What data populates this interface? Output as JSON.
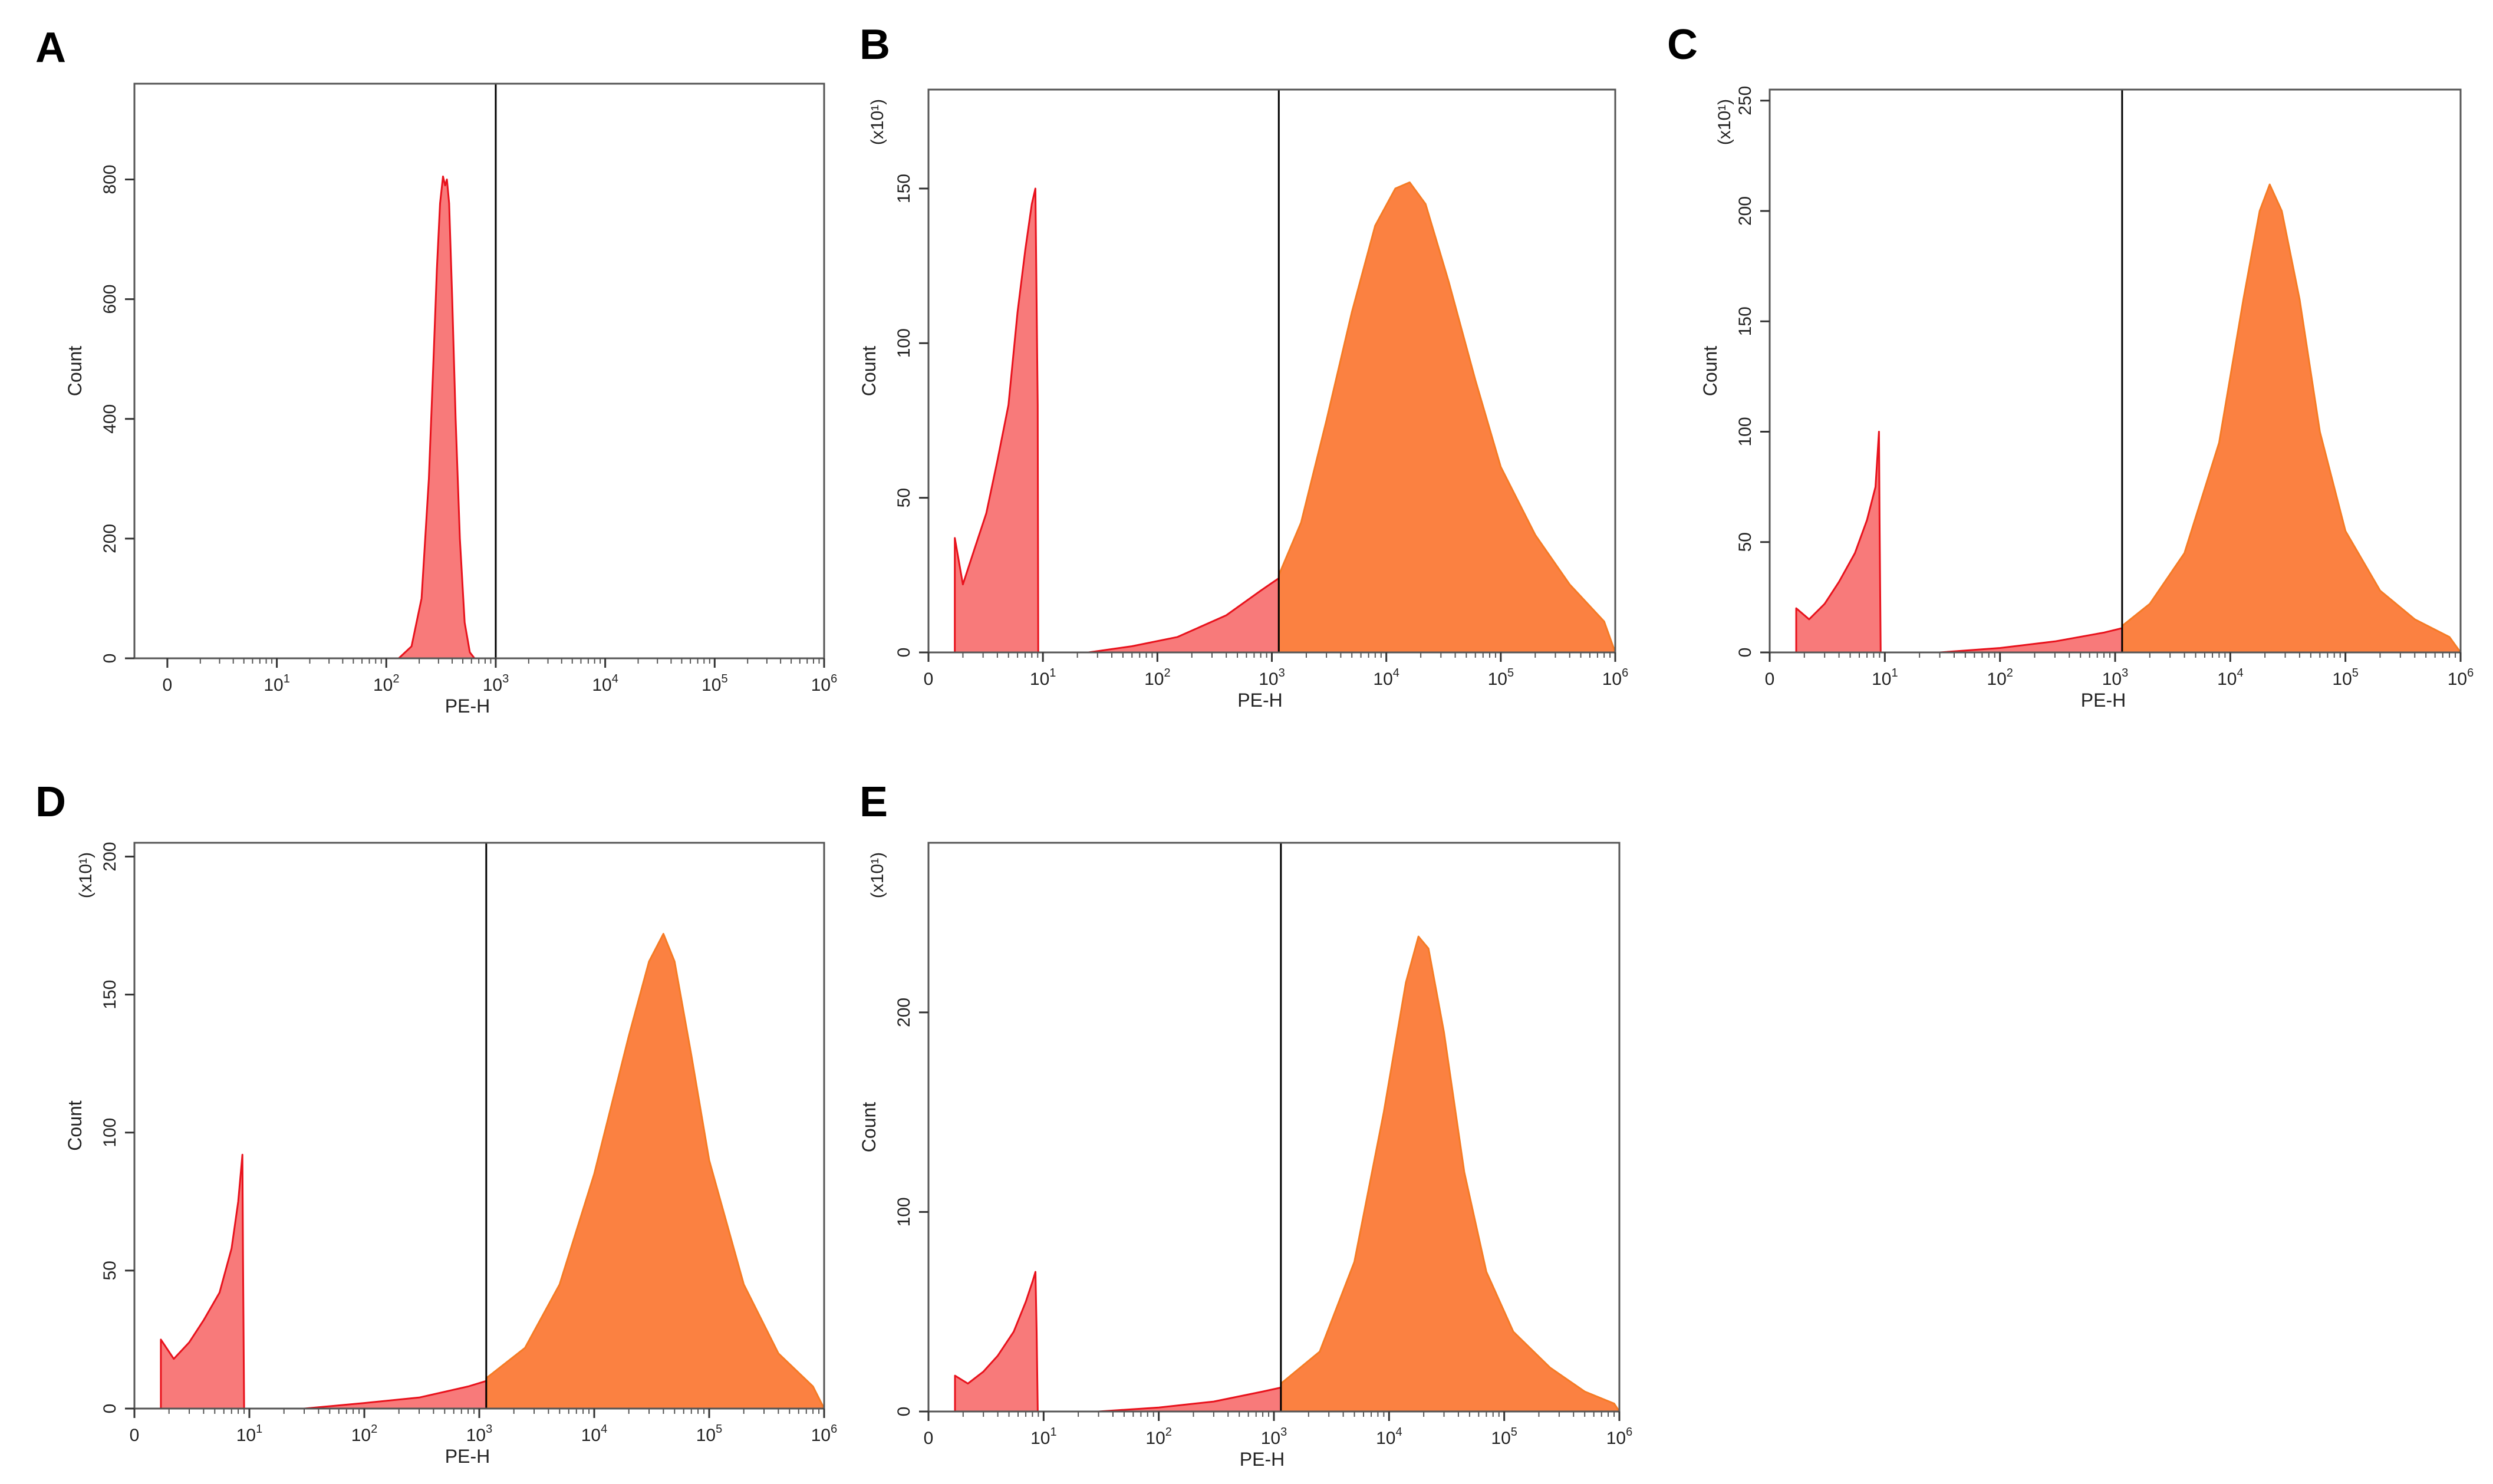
{
  "colors": {
    "negative_fill": "#f87a7a",
    "negative_stroke": "#e8121c",
    "positive_fill": "#fb8141",
    "positive_stroke": "#f57b25",
    "frame": "#000000"
  },
  "chart_data": [
    {
      "panel": "A",
      "type": "area",
      "xlabel": "PE-H",
      "ylabel": "Count",
      "multiplier": "",
      "xscale": "log",
      "xlim": [
        0.5,
        1000000
      ],
      "ylim": [
        0,
        960
      ],
      "xticks": [
        {
          "label": "0",
          "value": 1
        },
        {
          "label": "10",
          "exp": "1",
          "value": 10
        },
        {
          "label": "10",
          "exp": "2",
          "value": 100
        },
        {
          "label": "10",
          "exp": "3",
          "value": 1000
        },
        {
          "label": "10",
          "exp": "4",
          "value": 10000
        },
        {
          "label": "10",
          "exp": "5",
          "value": 100000
        },
        {
          "label": "10",
          "exp": "6",
          "value": 1000000
        }
      ],
      "yticks": [
        0,
        200,
        400,
        600,
        800
      ],
      "gate": 1000,
      "series": [
        {
          "name": "negative",
          "points": [
            [
              130,
              0
            ],
            [
              170,
              20
            ],
            [
              210,
              100
            ],
            [
              245,
              300
            ],
            [
              270,
              500
            ],
            [
              290,
              650
            ],
            [
              310,
              760
            ],
            [
              330,
              805
            ],
            [
              345,
              790
            ],
            [
              358,
              800
            ],
            [
              375,
              760
            ],
            [
              400,
              600
            ],
            [
              430,
              400
            ],
            [
              470,
              200
            ],
            [
              520,
              60
            ],
            [
              580,
              10
            ],
            [
              640,
              0
            ]
          ]
        }
      ]
    },
    {
      "panel": "B",
      "type": "area",
      "xlabel": "PE-H",
      "ylabel": "Count",
      "multiplier": "(x10¹)",
      "xscale": "log",
      "xlim": [
        1,
        1000000
      ],
      "ylim": [
        0,
        182
      ],
      "xticks": [
        {
          "label": "0",
          "value": 1
        },
        {
          "label": "10",
          "exp": "1",
          "value": 10
        },
        {
          "label": "10",
          "exp": "2",
          "value": 100
        },
        {
          "label": "10",
          "exp": "3",
          "value": 1000
        },
        {
          "label": "10",
          "exp": "4",
          "value": 10000
        },
        {
          "label": "10",
          "exp": "5",
          "value": 100000
        },
        {
          "label": "10",
          "exp": "6",
          "value": 1000000
        }
      ],
      "yticks": [
        0,
        50,
        100,
        150
      ],
      "gate": 1150,
      "series": [
        {
          "name": "negative",
          "points": [
            [
              1.7,
              0
            ],
            [
              1.7,
              37
            ],
            [
              2.0,
              22
            ],
            [
              2.5,
              33
            ],
            [
              3.2,
              45
            ],
            [
              4.0,
              62
            ],
            [
              5.0,
              80
            ],
            [
              6.0,
              110
            ],
            [
              7.0,
              130
            ],
            [
              8.0,
              145
            ],
            [
              8.6,
              150
            ],
            [
              9.0,
              80
            ],
            [
              9.1,
              0
            ],
            [
              25,
              0
            ],
            [
              60,
              2
            ],
            [
              150,
              5
            ],
            [
              400,
              12
            ],
            [
              800,
              20
            ],
            [
              1150,
              24
            ]
          ]
        },
        {
          "name": "positive",
          "points": [
            [
              1150,
              0
            ],
            [
              1150,
              25
            ],
            [
              1800,
              42
            ],
            [
              3000,
              75
            ],
            [
              5000,
              110
            ],
            [
              8000,
              138
            ],
            [
              12000,
              150
            ],
            [
              16000,
              152
            ],
            [
              22000,
              145
            ],
            [
              35000,
              120
            ],
            [
              60000,
              88
            ],
            [
              100000,
              60
            ],
            [
              200000,
              38
            ],
            [
              400000,
              22
            ],
            [
              800000,
              10
            ],
            [
              1000000,
              0
            ]
          ]
        }
      ]
    },
    {
      "panel": "C",
      "type": "area",
      "xlabel": "PE-H",
      "ylabel": "Count",
      "multiplier": "(x10¹)",
      "xscale": "log",
      "xlim": [
        1,
        1000000
      ],
      "ylim": [
        0,
        255
      ],
      "xticks": [
        {
          "label": "0",
          "value": 1
        },
        {
          "label": "10",
          "exp": "1",
          "value": 10
        },
        {
          "label": "10",
          "exp": "2",
          "value": 100
        },
        {
          "label": "10",
          "exp": "3",
          "value": 1000
        },
        {
          "label": "10",
          "exp": "4",
          "value": 10000
        },
        {
          "label": "10",
          "exp": "5",
          "value": 100000
        },
        {
          "label": "10",
          "exp": "6",
          "value": 1000000
        }
      ],
      "yticks": [
        0,
        50,
        100,
        150,
        200,
        250
      ],
      "gate": 1150,
      "series": [
        {
          "name": "negative",
          "points": [
            [
              1.7,
              0
            ],
            [
              1.7,
              20
            ],
            [
              2.2,
              15
            ],
            [
              3.0,
              22
            ],
            [
              4.0,
              32
            ],
            [
              5.5,
              45
            ],
            [
              7.0,
              60
            ],
            [
              8.3,
              75
            ],
            [
              8.9,
              100
            ],
            [
              9.0,
              60
            ],
            [
              9.2,
              0
            ],
            [
              30,
              0
            ],
            [
              100,
              2
            ],
            [
              300,
              5
            ],
            [
              800,
              9
            ],
            [
              1150,
              11
            ]
          ]
        },
        {
          "name": "positive",
          "points": [
            [
              1150,
              0
            ],
            [
              1150,
              12
            ],
            [
              2000,
              22
            ],
            [
              4000,
              45
            ],
            [
              8000,
              95
            ],
            [
              13000,
              160
            ],
            [
              18000,
              200
            ],
            [
              22000,
              212
            ],
            [
              28000,
              200
            ],
            [
              40000,
              160
            ],
            [
              60000,
              100
            ],
            [
              100000,
              55
            ],
            [
              200000,
              28
            ],
            [
              400000,
              15
            ],
            [
              800000,
              7
            ],
            [
              1000000,
              0
            ]
          ]
        }
      ]
    },
    {
      "panel": "D",
      "type": "area",
      "xlabel": "PE-H",
      "ylabel": "Count",
      "multiplier": "(x10¹)",
      "xscale": "log",
      "xlim": [
        1,
        1000000
      ],
      "ylim": [
        0,
        205
      ],
      "xticks": [
        {
          "label": "0",
          "value": 1
        },
        {
          "label": "10",
          "exp": "1",
          "value": 10
        },
        {
          "label": "10",
          "exp": "2",
          "value": 100
        },
        {
          "label": "10",
          "exp": "3",
          "value": 1000
        },
        {
          "label": "10",
          "exp": "4",
          "value": 10000
        },
        {
          "label": "10",
          "exp": "5",
          "value": 100000
        },
        {
          "label": "10",
          "exp": "6",
          "value": 1000000
        }
      ],
      "yticks": [
        0,
        50,
        100,
        150,
        200
      ],
      "gate": 1150,
      "series": [
        {
          "name": "negative",
          "points": [
            [
              1.7,
              0
            ],
            [
              1.7,
              25
            ],
            [
              2.2,
              18
            ],
            [
              3.0,
              24
            ],
            [
              4.0,
              32
            ],
            [
              5.5,
              42
            ],
            [
              7.0,
              58
            ],
            [
              8.0,
              75
            ],
            [
              8.7,
              92
            ],
            [
              8.8,
              55
            ],
            [
              9.0,
              0
            ],
            [
              30,
              0
            ],
            [
              100,
              2
            ],
            [
              300,
              4
            ],
            [
              800,
              8
            ],
            [
              1150,
              10
            ]
          ]
        },
        {
          "name": "positive",
          "points": [
            [
              1150,
              0
            ],
            [
              1150,
              11
            ],
            [
              2500,
              22
            ],
            [
              5000,
              45
            ],
            [
              10000,
              85
            ],
            [
              20000,
              135
            ],
            [
              30000,
              162
            ],
            [
              40000,
              172
            ],
            [
              50000,
              162
            ],
            [
              70000,
              128
            ],
            [
              100000,
              90
            ],
            [
              200000,
              45
            ],
            [
              400000,
              20
            ],
            [
              800000,
              8
            ],
            [
              1000000,
              0
            ]
          ]
        }
      ]
    },
    {
      "panel": "E",
      "type": "area",
      "xlabel": "PE-H",
      "ylabel": "Count",
      "multiplier": "(x10¹)",
      "xscale": "log",
      "xlim": [
        1,
        1000000
      ],
      "ylim": [
        0,
        285
      ],
      "xticks": [
        {
          "label": "0",
          "value": 1
        },
        {
          "label": "10",
          "exp": "1",
          "value": 10
        },
        {
          "label": "10",
          "exp": "2",
          "value": 100
        },
        {
          "label": "10",
          "exp": "3",
          "value": 1000
        },
        {
          "label": "10",
          "exp": "4",
          "value": 10000
        },
        {
          "label": "10",
          "exp": "5",
          "value": 100000
        },
        {
          "label": "10",
          "exp": "6",
          "value": 1000000
        }
      ],
      "yticks": [
        0,
        100,
        200
      ],
      "gate": 1150,
      "series": [
        {
          "name": "negative",
          "points": [
            [
              1.7,
              0
            ],
            [
              1.7,
              18
            ],
            [
              2.2,
              14
            ],
            [
              3.0,
              20
            ],
            [
              4.0,
              28
            ],
            [
              5.5,
              40
            ],
            [
              7.0,
              55
            ],
            [
              8.0,
              65
            ],
            [
              8.5,
              70
            ],
            [
              8.7,
              40
            ],
            [
              8.9,
              0
            ],
            [
              30,
              0
            ],
            [
              100,
              2
            ],
            [
              300,
              5
            ],
            [
              800,
              10
            ],
            [
              1150,
              12
            ]
          ]
        },
        {
          "name": "positive",
          "points": [
            [
              1150,
              0
            ],
            [
              1150,
              14
            ],
            [
              2500,
              30
            ],
            [
              5000,
              75
            ],
            [
              9000,
              150
            ],
            [
              14000,
              215
            ],
            [
              18000,
              238
            ],
            [
              22000,
              232
            ],
            [
              30000,
              190
            ],
            [
              45000,
              120
            ],
            [
              70000,
              70
            ],
            [
              120000,
              40
            ],
            [
              250000,
              22
            ],
            [
              500000,
              10
            ],
            [
              900000,
              4
            ],
            [
              1000000,
              0
            ]
          ]
        }
      ]
    }
  ]
}
